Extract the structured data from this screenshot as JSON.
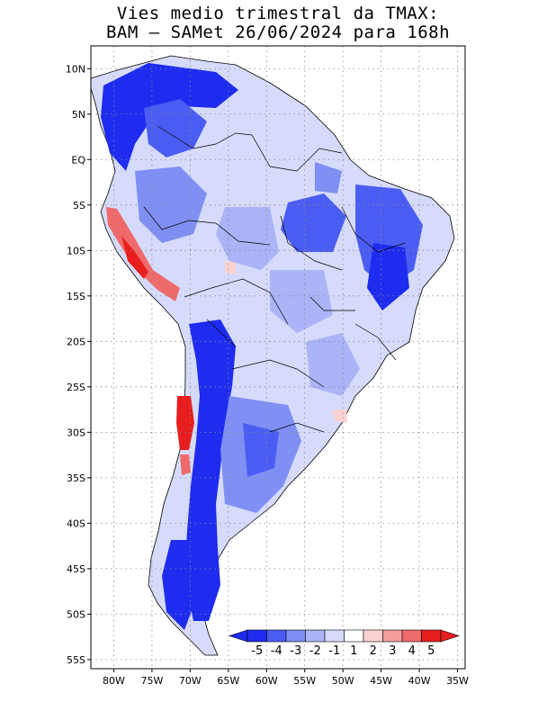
{
  "title": {
    "line1": "Vies medio trimestral da TMAX:",
    "line2": "BAM — SAMet 26/06/2024  para 168h"
  },
  "map": {
    "lon_ticks": [
      "80W",
      "75W",
      "70W",
      "65W",
      "60W",
      "55W",
      "50W",
      "45W",
      "40W",
      "35W"
    ],
    "lat_ticks": [
      "10N",
      "5N",
      "EQ",
      "5S",
      "10S",
      "15S",
      "20S",
      "25S",
      "30S",
      "35S",
      "40S",
      "45S",
      "50S",
      "55S"
    ],
    "lon_range": [
      -83,
      -34
    ],
    "lat_range": [
      12.5,
      -56
    ],
    "grid": "dotted"
  },
  "colorbar": {
    "labels": [
      "-5",
      "-4",
      "-3",
      "-2",
      "-1",
      "1",
      "2",
      "3",
      "4",
      "5"
    ],
    "colors": [
      "#1e2cf0",
      "#4a5df2",
      "#7f8ff4",
      "#aab4f7",
      "#d6dbfb",
      "#ffffff",
      "#fbd2d2",
      "#f49e9e",
      "#ef6a6a",
      "#e81e1e"
    ],
    "extend_low_color": "#1e2cf0",
    "extend_high_color": "#e81e1e"
  }
}
